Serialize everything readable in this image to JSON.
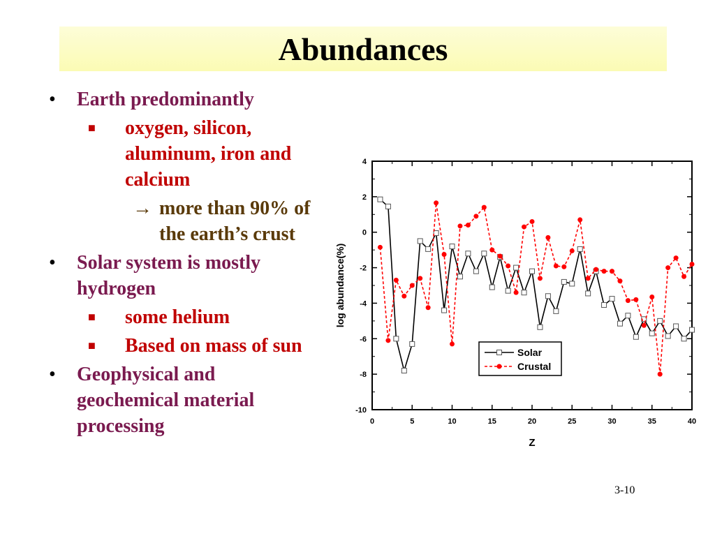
{
  "slide": {
    "title": "Abundances",
    "page_number": "3-10"
  },
  "bullets": {
    "b1": "Earth predominantly",
    "b1_s1": "oxygen, silicon, aluminum, iron and calcium",
    "b1_s1_a1": "more than 90% of the earth’s crust",
    "b2": "Solar system is mostly hydrogen",
    "b2_s1": "some helium",
    "b2_s2": "Based on mass of sun",
    "b3": "Geophysical and geochemical material processing"
  },
  "chart_data": {
    "type": "line",
    "xlabel": "Z",
    "ylabel": "log abundance(%)",
    "xlim": [
      0,
      40
    ],
    "ylim": [
      -10,
      4
    ],
    "x_ticks": [
      0,
      5,
      10,
      15,
      20,
      25,
      30,
      35,
      40
    ],
    "y_ticks": [
      4,
      2,
      0,
      -2,
      -4,
      -6,
      -8,
      -10
    ],
    "legend_position": "bottom-right",
    "series": [
      {
        "name": "Solar",
        "color": "#000000",
        "marker": "open-square",
        "line": "solid",
        "points": [
          [
            1,
            1.85
          ],
          [
            2,
            1.45
          ],
          [
            3,
            -6.0
          ],
          [
            4,
            -7.8
          ],
          [
            5,
            -6.3
          ],
          [
            6,
            -0.5
          ],
          [
            7,
            -0.95
          ],
          [
            8,
            -0.05
          ],
          [
            9,
            -4.4
          ],
          [
            10,
            -0.8
          ],
          [
            11,
            -2.5
          ],
          [
            12,
            -1.2
          ],
          [
            13,
            -2.2
          ],
          [
            14,
            -1.2
          ],
          [
            15,
            -3.1
          ],
          [
            16,
            -1.4
          ],
          [
            17,
            -3.3
          ],
          [
            18,
            -2.0
          ],
          [
            19,
            -3.4
          ],
          [
            20,
            -2.2
          ],
          [
            21,
            -5.35
          ],
          [
            22,
            -3.6
          ],
          [
            23,
            -4.45
          ],
          [
            24,
            -2.8
          ],
          [
            25,
            -2.9
          ],
          [
            26,
            -0.95
          ],
          [
            27,
            -3.45
          ],
          [
            28,
            -2.2
          ],
          [
            29,
            -4.1
          ],
          [
            30,
            -3.75
          ],
          [
            31,
            -5.15
          ],
          [
            32,
            -4.7
          ],
          [
            33,
            -5.9
          ],
          [
            34,
            -4.9
          ],
          [
            35,
            -5.7
          ],
          [
            36,
            -5.0
          ],
          [
            37,
            -5.85
          ],
          [
            38,
            -5.3
          ],
          [
            39,
            -6.0
          ],
          [
            40,
            -5.5
          ]
        ]
      },
      {
        "name": "Crustal",
        "color": "#ff0000",
        "marker": "filled-circle",
        "line": "dashed",
        "points": [
          [
            1,
            -0.85
          ],
          [
            2,
            -6.1
          ],
          [
            3,
            -2.7
          ],
          [
            4,
            -3.6
          ],
          [
            5,
            -3.0
          ],
          [
            6,
            -2.6
          ],
          [
            7,
            -4.25
          ],
          [
            8,
            1.65
          ],
          [
            9,
            -1.25
          ],
          [
            10,
            -6.3
          ],
          [
            11,
            0.35
          ],
          [
            12,
            0.4
          ],
          [
            13,
            0.9
          ],
          [
            14,
            1.4
          ],
          [
            15,
            -1.0
          ],
          [
            16,
            -1.35
          ],
          [
            17,
            -1.9
          ],
          [
            18,
            -3.4
          ],
          [
            19,
            0.3
          ],
          [
            20,
            0.6
          ],
          [
            21,
            -2.6
          ],
          [
            22,
            -0.3
          ],
          [
            23,
            -1.9
          ],
          [
            24,
            -1.95
          ],
          [
            25,
            -1.05
          ],
          [
            26,
            0.7
          ],
          [
            27,
            -2.6
          ],
          [
            28,
            -2.1
          ],
          [
            29,
            -2.2
          ],
          [
            30,
            -2.2
          ],
          [
            31,
            -2.75
          ],
          [
            32,
            -3.85
          ],
          [
            33,
            -3.8
          ],
          [
            34,
            -5.25
          ],
          [
            35,
            -3.65
          ],
          [
            36,
            -8.0
          ],
          [
            37,
            -2.0
          ],
          [
            38,
            -1.45
          ],
          [
            39,
            -2.5
          ],
          [
            40,
            -1.8
          ]
        ]
      }
    ]
  }
}
